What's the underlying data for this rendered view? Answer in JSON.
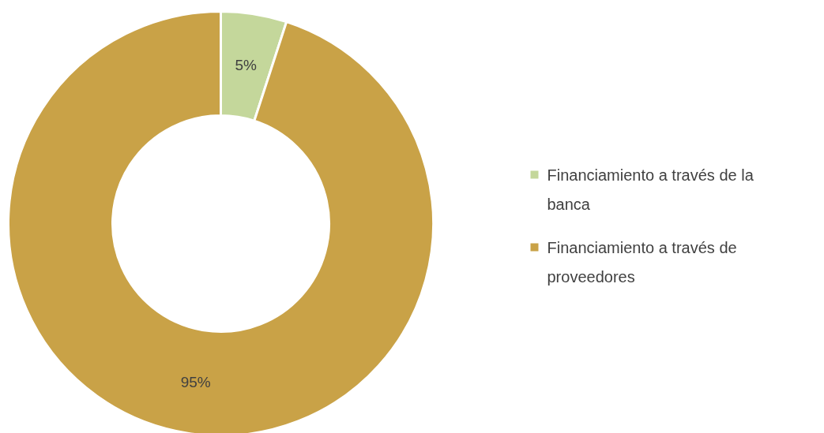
{
  "chart_data": {
    "type": "donut",
    "categories": [
      "Financiamiento a través de la banca",
      "Financiamiento a través de proveedores"
    ],
    "values": [
      5,
      95
    ],
    "value_labels": [
      "5%",
      "95%"
    ],
    "colors": [
      "#c4d79b",
      "#c9a247"
    ],
    "legend": "right"
  }
}
